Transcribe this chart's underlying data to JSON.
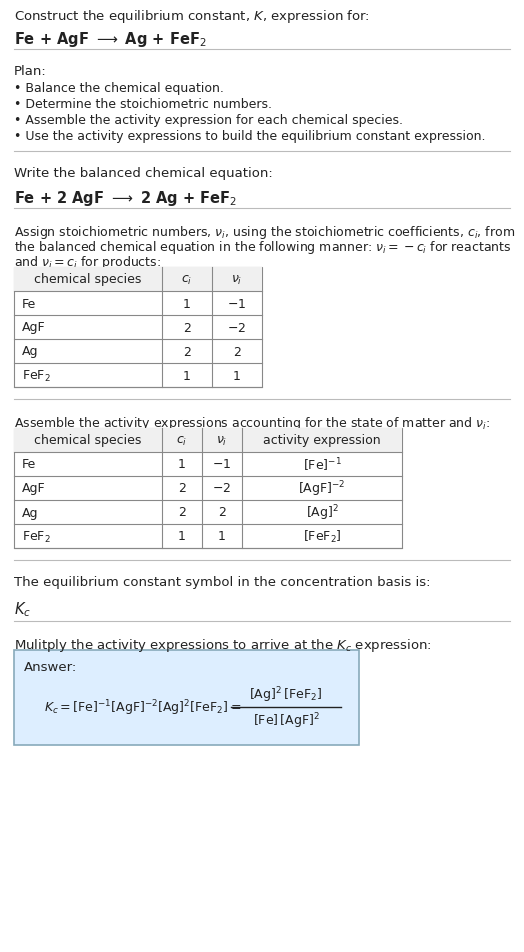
{
  "title_line1": "Construct the equilibrium constant, $K$, expression for:",
  "title_line2": "Fe + AgF $\\longrightarrow$ Ag + FeF$_2$",
  "plan_header": "Plan:",
  "plan_items": [
    "• Balance the chemical equation.",
    "• Determine the stoichiometric numbers.",
    "• Assemble the activity expression for each chemical species.",
    "• Use the activity expressions to build the equilibrium constant expression."
  ],
  "balanced_header": "Write the balanced chemical equation:",
  "balanced_eq": "Fe + 2 AgF $\\longrightarrow$ 2 Ag + FeF$_2$",
  "stoich_line1": "Assign stoichiometric numbers, $\\nu_i$, using the stoichiometric coefficients, $c_i$, from",
  "stoich_line2": "the balanced chemical equation in the following manner: $\\nu_i = -c_i$ for reactants",
  "stoich_line3": "and $\\nu_i = c_i$ for products:",
  "table1_cols": [
    "chemical species",
    "$c_i$",
    "$\\nu_i$"
  ],
  "table1_data": [
    [
      "Fe",
      "1",
      "$-1$"
    ],
    [
      "AgF",
      "2",
      "$-2$"
    ],
    [
      "Ag",
      "2",
      "2"
    ],
    [
      "FeF$_2$",
      "1",
      "1"
    ]
  ],
  "activity_header": "Assemble the activity expressions accounting for the state of matter and $\\nu_i$:",
  "table2_cols": [
    "chemical species",
    "$c_i$",
    "$\\nu_i$",
    "activity expression"
  ],
  "table2_data": [
    [
      "Fe",
      "1",
      "$-1$",
      "$[\\mathrm{Fe}]^{-1}$"
    ],
    [
      "AgF",
      "2",
      "$-2$",
      "$[\\mathrm{AgF}]^{-2}$"
    ],
    [
      "Ag",
      "2",
      "2",
      "$[\\mathrm{Ag}]^2$"
    ],
    [
      "FeF$_2$",
      "1",
      "1",
      "$[\\mathrm{FeF}_2]$"
    ]
  ],
  "kc_header": "The equilibrium constant symbol in the concentration basis is:",
  "kc_symbol": "$K_c$",
  "multiply_header": "Mulitply the activity expressions to arrive at the $K_c$ expression:",
  "answer_label": "Answer:",
  "answer_box_color": "#ddeeff",
  "answer_border_color": "#88aabb",
  "bg_color": "#ffffff",
  "text_color": "#222222",
  "sep_color": "#bbbbbb"
}
